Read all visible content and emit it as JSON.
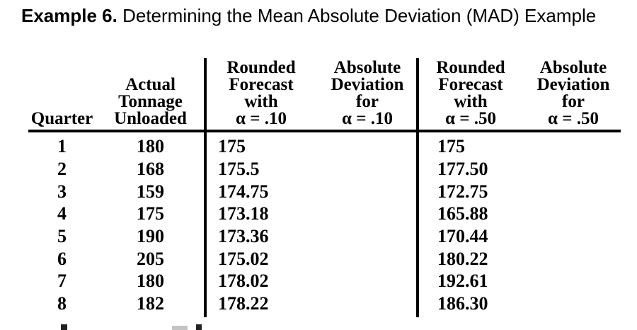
{
  "title": {
    "label": "Example 6.",
    "text": "Determining the Mean Absolute Deviation (MAD) Example"
  },
  "colors": {
    "text": "#000000",
    "background": "#ffffff",
    "rule": "#000000"
  },
  "table": {
    "columns": [
      {
        "key": "quarter",
        "header": "Quarter"
      },
      {
        "key": "actual",
        "header": "Actual\nTonnage\nUnloaded"
      },
      {
        "key": "forecast_10",
        "header": "Rounded\nForecast\nwith\nα = .10"
      },
      {
        "key": "abs_dev_10",
        "header": "Absolute\nDeviation\nfor\nα = .10"
      },
      {
        "key": "forecast_50",
        "header": "Rounded\nForecast\nwith\nα = .50"
      },
      {
        "key": "abs_dev_50",
        "header": "Absolute\nDeviation\nfor\nα = .50"
      }
    ],
    "rows": [
      {
        "quarter": "1",
        "actual": "180",
        "forecast_10": "175",
        "abs_dev_10": "",
        "forecast_50": "175",
        "abs_dev_50": ""
      },
      {
        "quarter": "2",
        "actual": "168",
        "forecast_10": "175.5",
        "abs_dev_10": "",
        "forecast_50": "177.50",
        "abs_dev_50": ""
      },
      {
        "quarter": "3",
        "actual": "159",
        "forecast_10": "174.75",
        "abs_dev_10": "",
        "forecast_50": "172.75",
        "abs_dev_50": ""
      },
      {
        "quarter": "4",
        "actual": "175",
        "forecast_10": "173.18",
        "abs_dev_10": "",
        "forecast_50": "165.88",
        "abs_dev_50": ""
      },
      {
        "quarter": "5",
        "actual": "190",
        "forecast_10": "173.36",
        "abs_dev_10": "",
        "forecast_50": "170.44",
        "abs_dev_50": ""
      },
      {
        "quarter": "6",
        "actual": "205",
        "forecast_10": "175.02",
        "abs_dev_10": "",
        "forecast_50": "180.22",
        "abs_dev_50": ""
      },
      {
        "quarter": "7",
        "actual": "180",
        "forecast_10": "178.02",
        "abs_dev_10": "",
        "forecast_50": "192.61",
        "abs_dev_50": ""
      },
      {
        "quarter": "8",
        "actual": "182",
        "forecast_10": "178.22",
        "abs_dev_10": "",
        "forecast_50": "186.30",
        "abs_dev_50": ""
      }
    ]
  }
}
